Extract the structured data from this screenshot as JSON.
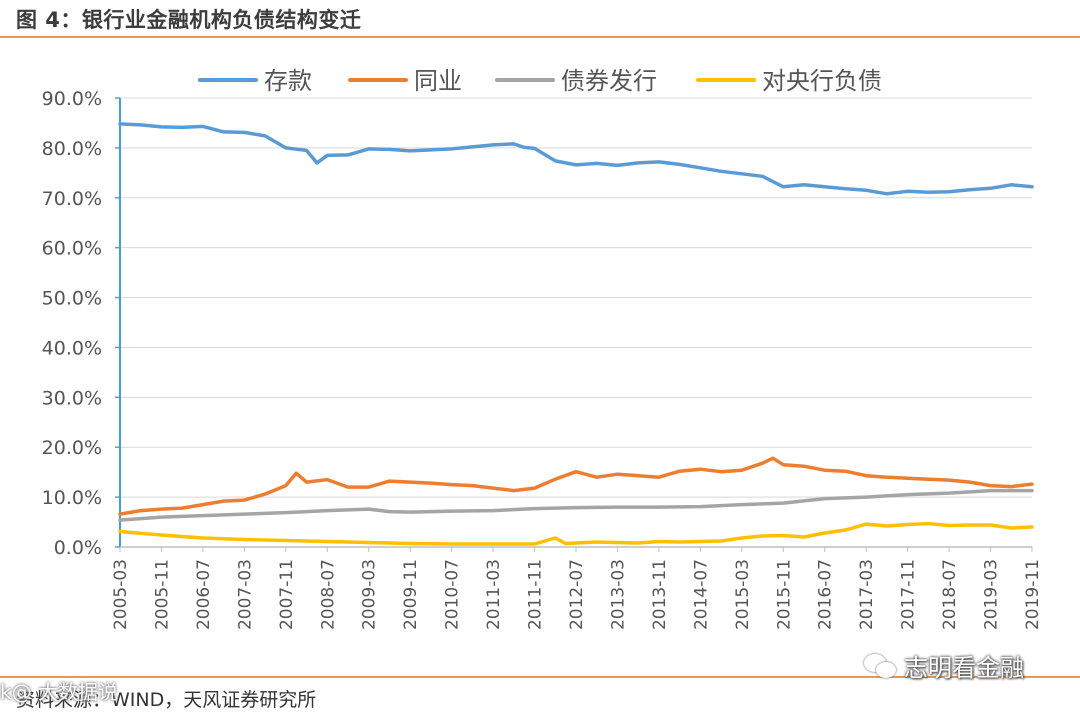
{
  "header": {
    "title": "图 4：银行业金融机构负债结构变迁"
  },
  "footer": {
    "source": "资料来源：WIND，天风证券研究所",
    "watermark": "志明看金融",
    "watermark2": "k@ 大数据说"
  },
  "chart_data": {
    "type": "line",
    "title": "",
    "xlabel": "",
    "ylabel": "",
    "ylim": [
      0,
      90
    ],
    "yticks": [
      "0.0%",
      "10.0%",
      "20.0%",
      "30.0%",
      "40.0%",
      "50.0%",
      "60.0%",
      "70.0%",
      "80.0%",
      "90.0%"
    ],
    "xticks": [
      "2005-03",
      "2005-11",
      "2006-07",
      "2007-03",
      "2007-11",
      "2008-07",
      "2009-03",
      "2009-11",
      "2010-07",
      "2011-03",
      "2011-11",
      "2012-07",
      "2013-03",
      "2013-11",
      "2014-07",
      "2015-03",
      "2015-11",
      "2016-07",
      "2017-03",
      "2017-11",
      "2018-07",
      "2019-03",
      "2019-11"
    ],
    "x_range": [
      0,
      176
    ],
    "grid": true,
    "legend_position": "top",
    "series": [
      {
        "name": "存款",
        "color": "#5b9bd5",
        "points": [
          [
            0,
            84.8
          ],
          [
            4,
            84.6
          ],
          [
            8,
            84.2
          ],
          [
            12,
            84.1
          ],
          [
            16,
            84.3
          ],
          [
            20,
            83.2
          ],
          [
            24,
            83.1
          ],
          [
            28,
            82.4
          ],
          [
            32,
            80.0
          ],
          [
            36,
            79.5
          ],
          [
            38,
            77.0
          ],
          [
            40,
            78.5
          ],
          [
            44,
            78.6
          ],
          [
            48,
            79.8
          ],
          [
            52,
            79.7
          ],
          [
            56,
            79.4
          ],
          [
            60,
            79.6
          ],
          [
            64,
            79.8
          ],
          [
            68,
            80.2
          ],
          [
            72,
            80.6
          ],
          [
            76,
            80.8
          ],
          [
            78,
            80.1
          ],
          [
            80,
            79.9
          ],
          [
            84,
            77.4
          ],
          [
            88,
            76.6
          ],
          [
            92,
            76.9
          ],
          [
            96,
            76.5
          ],
          [
            100,
            77.0
          ],
          [
            104,
            77.2
          ],
          [
            108,
            76.7
          ],
          [
            112,
            76.0
          ],
          [
            116,
            75.3
          ],
          [
            120,
            74.8
          ],
          [
            124,
            74.3
          ],
          [
            128,
            72.2
          ],
          [
            132,
            72.6
          ],
          [
            136,
            72.2
          ],
          [
            140,
            71.8
          ],
          [
            144,
            71.5
          ],
          [
            148,
            70.8
          ],
          [
            152,
            71.3
          ],
          [
            156,
            71.1
          ],
          [
            160,
            71.2
          ],
          [
            164,
            71.6
          ],
          [
            168,
            71.9
          ],
          [
            172,
            72.6
          ],
          [
            176,
            72.2
          ]
        ]
      },
      {
        "name": "同业",
        "color": "#ed7d31",
        "points": [
          [
            0,
            6.6
          ],
          [
            4,
            7.3
          ],
          [
            8,
            7.6
          ],
          [
            12,
            7.8
          ],
          [
            16,
            8.5
          ],
          [
            20,
            9.2
          ],
          [
            24,
            9.4
          ],
          [
            28,
            10.6
          ],
          [
            32,
            12.3
          ],
          [
            34,
            14.8
          ],
          [
            36,
            13.0
          ],
          [
            40,
            13.5
          ],
          [
            44,
            12.0
          ],
          [
            48,
            12.0
          ],
          [
            52,
            13.2
          ],
          [
            56,
            13.0
          ],
          [
            60,
            12.8
          ],
          [
            64,
            12.5
          ],
          [
            68,
            12.3
          ],
          [
            72,
            11.8
          ],
          [
            76,
            11.3
          ],
          [
            80,
            11.8
          ],
          [
            84,
            13.6
          ],
          [
            88,
            15.1
          ],
          [
            92,
            14.0
          ],
          [
            96,
            14.6
          ],
          [
            100,
            14.3
          ],
          [
            104,
            14.0
          ],
          [
            108,
            15.2
          ],
          [
            112,
            15.6
          ],
          [
            116,
            15.1
          ],
          [
            120,
            15.4
          ],
          [
            124,
            16.8
          ],
          [
            126,
            17.8
          ],
          [
            128,
            16.5
          ],
          [
            132,
            16.2
          ],
          [
            136,
            15.4
          ],
          [
            140,
            15.2
          ],
          [
            144,
            14.3
          ],
          [
            148,
            14.0
          ],
          [
            152,
            13.8
          ],
          [
            156,
            13.6
          ],
          [
            160,
            13.4
          ],
          [
            164,
            13.0
          ],
          [
            168,
            12.3
          ],
          [
            172,
            12.1
          ],
          [
            176,
            12.6
          ]
        ]
      },
      {
        "name": "债券发行",
        "color": "#a5a5a5",
        "points": [
          [
            0,
            5.4
          ],
          [
            8,
            6.0
          ],
          [
            16,
            6.3
          ],
          [
            24,
            6.6
          ],
          [
            32,
            6.9
          ],
          [
            40,
            7.3
          ],
          [
            48,
            7.6
          ],
          [
            52,
            7.1
          ],
          [
            56,
            7.0
          ],
          [
            64,
            7.2
          ],
          [
            72,
            7.3
          ],
          [
            80,
            7.7
          ],
          [
            88,
            7.9
          ],
          [
            96,
            8.0
          ],
          [
            104,
            8.0
          ],
          [
            112,
            8.1
          ],
          [
            120,
            8.5
          ],
          [
            128,
            8.8
          ],
          [
            136,
            9.7
          ],
          [
            144,
            10.0
          ],
          [
            152,
            10.5
          ],
          [
            160,
            10.8
          ],
          [
            168,
            11.3
          ],
          [
            176,
            11.3
          ]
        ]
      },
      {
        "name": "对央行负债",
        "color": "#ffc000",
        "points": [
          [
            0,
            3.1
          ],
          [
            8,
            2.4
          ],
          [
            16,
            1.8
          ],
          [
            24,
            1.5
          ],
          [
            32,
            1.3
          ],
          [
            40,
            1.1
          ],
          [
            48,
            0.9
          ],
          [
            56,
            0.7
          ],
          [
            64,
            0.6
          ],
          [
            72,
            0.6
          ],
          [
            80,
            0.6
          ],
          [
            84,
            1.8
          ],
          [
            86,
            0.7
          ],
          [
            92,
            1.0
          ],
          [
            100,
            0.8
          ],
          [
            104,
            1.1
          ],
          [
            108,
            1.0
          ],
          [
            112,
            1.1
          ],
          [
            116,
            1.2
          ],
          [
            120,
            1.8
          ],
          [
            124,
            2.2
          ],
          [
            128,
            2.3
          ],
          [
            132,
            2.0
          ],
          [
            136,
            2.8
          ],
          [
            140,
            3.4
          ],
          [
            144,
            4.6
          ],
          [
            148,
            4.2
          ],
          [
            152,
            4.5
          ],
          [
            156,
            4.7
          ],
          [
            160,
            4.3
          ],
          [
            164,
            4.4
          ],
          [
            168,
            4.4
          ],
          [
            172,
            3.8
          ],
          [
            176,
            4.0
          ]
        ]
      }
    ]
  }
}
